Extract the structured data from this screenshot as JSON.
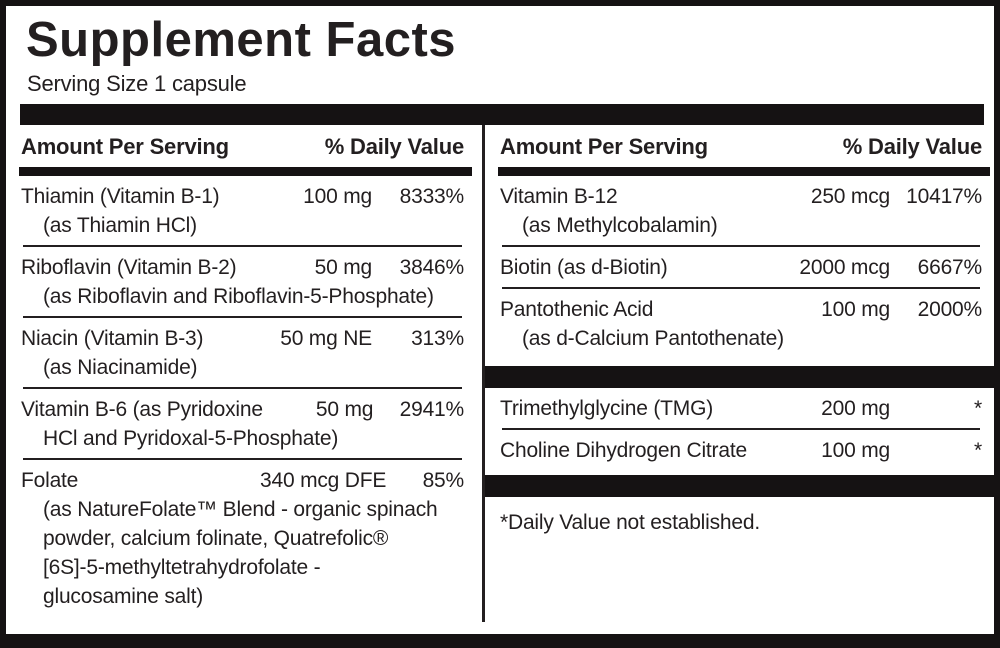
{
  "title": "Supplement Facts",
  "serving_size": "Serving Size 1 capsule",
  "footnote": "*Daily Value not established.",
  "colors": {
    "ink": "#231f20",
    "bar": "#151213",
    "background": "#ffffff"
  },
  "columns": {
    "left": {
      "header": {
        "amount_label": "Amount Per Serving",
        "dv_label": "% Daily Value"
      },
      "rows": [
        {
          "name": "Thiamin (Vitamin B-1)",
          "amount": "100 mg",
          "dv": "8333%",
          "sub": [
            "(as Thiamin HCl)"
          ]
        },
        {
          "name": "Riboflavin (Vitamin B-2)",
          "amount": "50 mg",
          "dv": "3846%",
          "sub": [
            "(as Riboflavin and Riboflavin-5-Phosphate)"
          ]
        },
        {
          "name": "Niacin (Vitamin B-3)",
          "amount": "50 mg NE",
          "dv": "313%",
          "sub": [
            "(as Niacinamide)"
          ]
        },
        {
          "name": "Vitamin B-6 (as Pyridoxine",
          "amount": "50 mg",
          "dv": "2941%",
          "sub": [
            "HCl and Pyridoxal-5-Phosphate)"
          ]
        },
        {
          "name": "Folate",
          "amount": "340 mcg DFE",
          "dv": "85%",
          "sub": [
            "(as NatureFolate™ Blend - organic spinach",
            "powder, calcium folinate, Quatrefolic®",
            "[6S]-5-methyltetrahydrofolate -",
            "glucosamine salt)"
          ]
        }
      ]
    },
    "right": {
      "header": {
        "amount_label": "Amount Per Serving",
        "dv_label": "% Daily Value"
      },
      "main_rows": [
        {
          "name": "Vitamin B-12",
          "amount": "250 mcg",
          "dv": "10417%",
          "sub": [
            "(as Methylcobalamin)"
          ]
        },
        {
          "name": "Biotin (as d-Biotin)",
          "amount": "2000 mcg",
          "dv": "6667%",
          "sub": []
        },
        {
          "name": "Pantothenic Acid",
          "amount": "100 mg",
          "dv": "2000%",
          "sub": [
            "(as d-Calcium Pantothenate)"
          ]
        }
      ],
      "other_rows": [
        {
          "name": "Trimethylglycine (TMG)",
          "amount": "200 mg",
          "dv": "*",
          "sub": []
        },
        {
          "name": "Choline Dihydrogen Citrate",
          "amount": "100 mg",
          "dv": "*",
          "sub": []
        }
      ]
    }
  }
}
